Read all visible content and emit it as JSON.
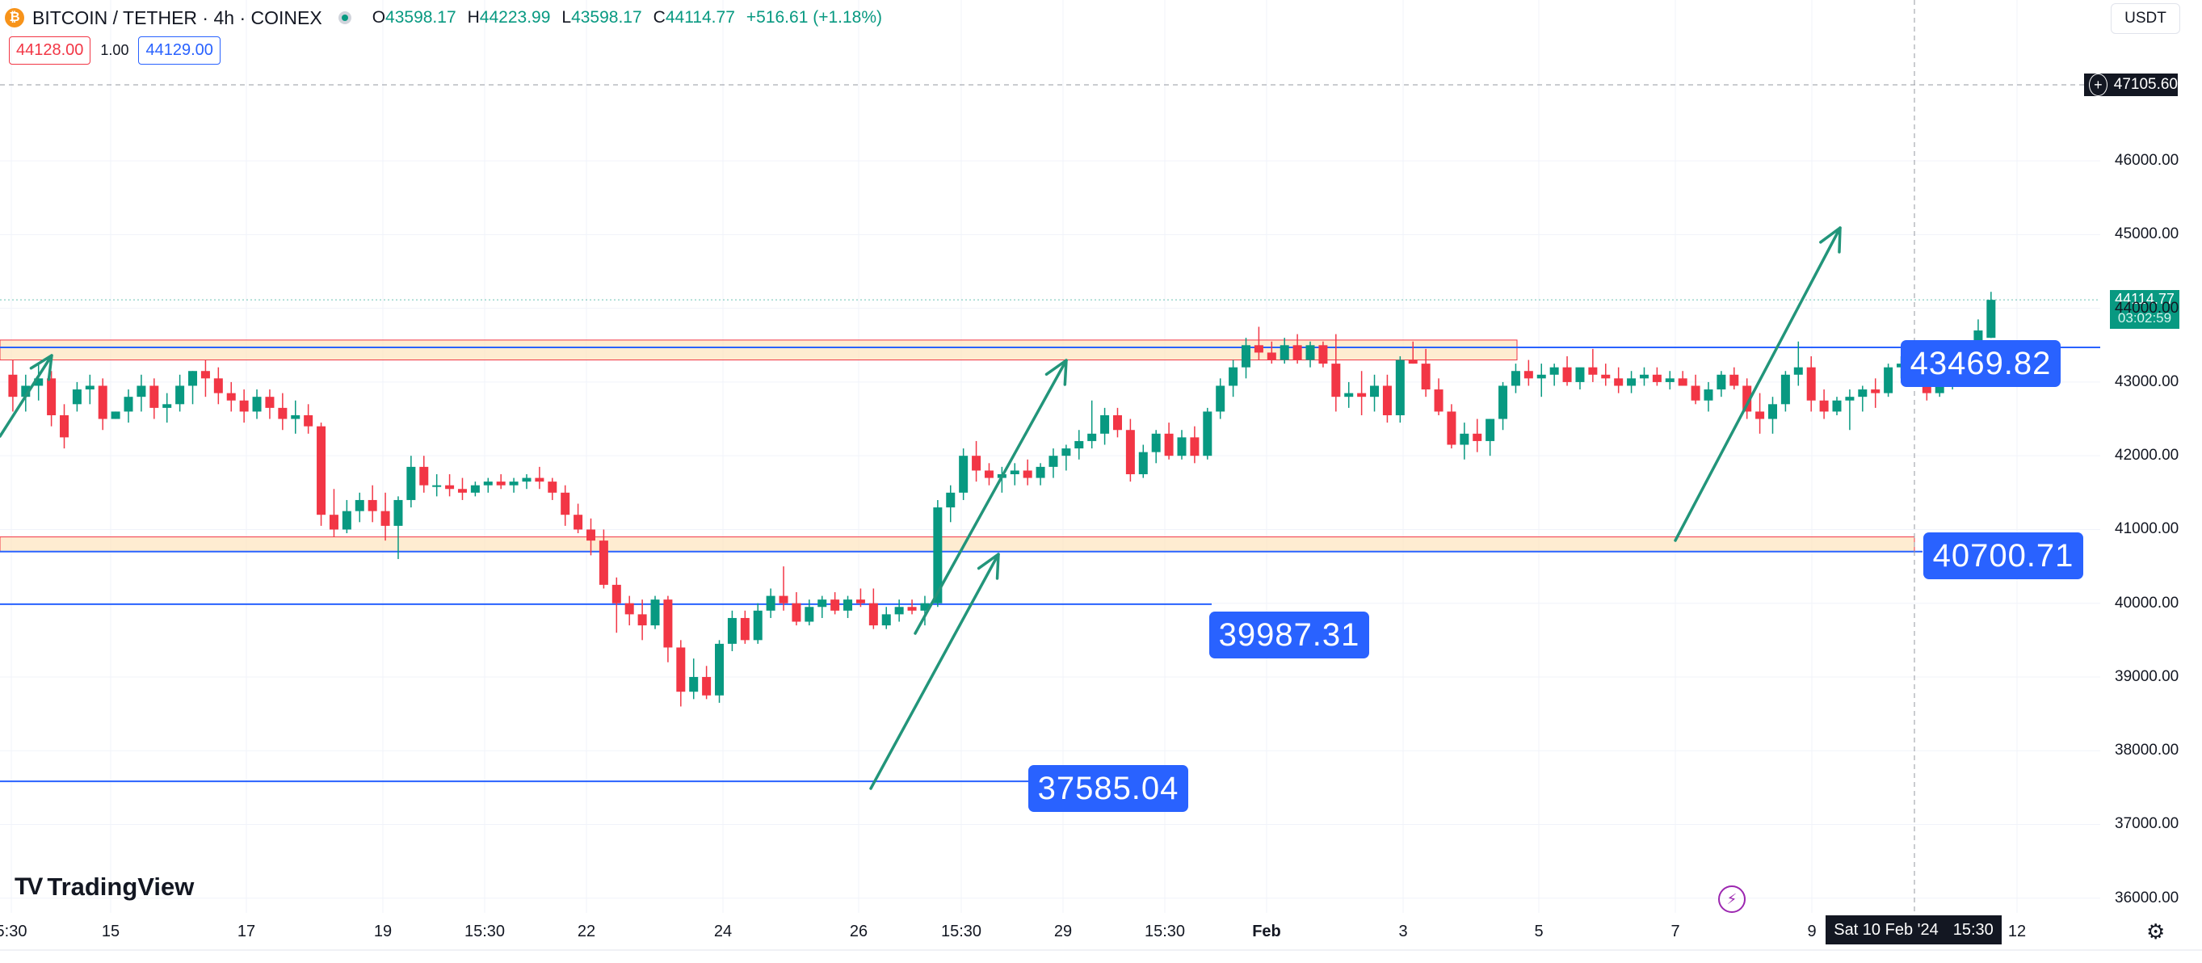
{
  "header": {
    "symbol_title": "BITCOIN / TETHER · 4h · COINEX",
    "coin_icon": "bitcoin-icon",
    "ohlc": [
      {
        "key": "O",
        "value": "43598.17"
      },
      {
        "key": "H",
        "value": "44223.99"
      },
      {
        "key": "L",
        "value": "43598.17"
      },
      {
        "key": "C",
        "value": "44114.77"
      }
    ],
    "change": "+516.61 (+1.18%)"
  },
  "bidask": {
    "bid": "44128.00",
    "spread": "1.00",
    "ask": "44129.00"
  },
  "currency_button": "USDT",
  "crosshair": {
    "price": "47105.60",
    "time_date": "Sat 10 Feb '24",
    "time_clock": "15:30"
  },
  "current_price": {
    "price": "44114.77",
    "countdown": "03:02:59"
  },
  "levels": [
    {
      "value": "43469.82"
    },
    {
      "value": "40700.71"
    },
    {
      "value": "39987.31"
    },
    {
      "value": "37585.04"
    }
  ],
  "logo_text": "TradingView",
  "colors": {
    "up": "#089981",
    "down": "#f23645",
    "level": "#2962ff",
    "zone_fill": "#fde5c2",
    "zone_border": "#f23645"
  },
  "chart_data": {
    "type": "candlestick",
    "symbol": "BITCOIN / TETHER",
    "interval": "4h",
    "exchange": "COINEX",
    "y_ticks": [
      36000,
      37000,
      38000,
      39000,
      40000,
      41000,
      42000,
      43000,
      44000,
      45000,
      46000
    ],
    "y_tick_labels": [
      "36000.00",
      "37000.00",
      "38000.00",
      "39000.00",
      "40000.00",
      "41000.00",
      "42000.00",
      "43000.00",
      "44000.00",
      "45000.00",
      "46000.00"
    ],
    "x_tick_labels": [
      "5:30",
      "15",
      "17",
      "19",
      "15:30",
      "22",
      "24",
      "26",
      "15:30",
      "29",
      "15:30",
      "Feb",
      "3",
      "5",
      "7",
      "9",
      "12"
    ],
    "candles": [
      [
        43100,
        43300,
        42600,
        42800
      ],
      [
        42800,
        43100,
        42600,
        42950
      ],
      [
        42950,
        43250,
        42750,
        43050
      ],
      [
        43050,
        43150,
        42400,
        42550
      ],
      [
        42550,
        42700,
        42100,
        42250
      ],
      [
        42700,
        43000,
        42600,
        42900
      ],
      [
        42900,
        43100,
        42700,
        42950
      ],
      [
        42950,
        43050,
        42350,
        42500
      ],
      [
        42500,
        42600,
        42500,
        42600
      ],
      [
        42600,
        42900,
        42450,
        42800
      ],
      [
        42800,
        43100,
        42600,
        42950
      ],
      [
        42950,
        43050,
        42500,
        42650
      ],
      [
        42650,
        42850,
        42450,
        42700
      ],
      [
        42700,
        43100,
        42600,
        42950
      ],
      [
        42950,
        43150,
        42700,
        43150
      ],
      [
        43150,
        43300,
        42800,
        43050
      ],
      [
        43050,
        43200,
        42700,
        42850
      ],
      [
        42850,
        43000,
        42600,
        42750
      ],
      [
        42750,
        42900,
        42450,
        42600
      ],
      [
        42600,
        42900,
        42500,
        42800
      ],
      [
        42800,
        42900,
        42500,
        42650
      ],
      [
        42650,
        42850,
        42350,
        42500
      ],
      [
        42500,
        42750,
        42300,
        42550
      ],
      [
        42550,
        42700,
        42300,
        42400
      ],
      [
        42400,
        42450,
        41050,
        41200
      ],
      [
        41200,
        41550,
        40900,
        41000
      ],
      [
        41000,
        41400,
        40950,
        41250
      ],
      [
        41250,
        41500,
        41100,
        41400
      ],
      [
        41400,
        41600,
        41100,
        41250
      ],
      [
        41250,
        41500,
        40850,
        41050
      ],
      [
        41050,
        41450,
        40600,
        41400
      ],
      [
        41400,
        42000,
        41300,
        41850
      ],
      [
        41850,
        42000,
        41500,
        41600
      ],
      [
        41600,
        41750,
        41450,
        41600
      ],
      [
        41600,
        41750,
        41450,
        41550
      ],
      [
        41550,
        41700,
        41400,
        41500
      ],
      [
        41500,
        41650,
        41450,
        41600
      ],
      [
        41600,
        41700,
        41500,
        41650
      ],
      [
        41650,
        41750,
        41550,
        41600
      ],
      [
        41600,
        41700,
        41500,
        41650
      ],
      [
        41650,
        41750,
        41550,
        41700
      ],
      [
        41700,
        41850,
        41550,
        41650
      ],
      [
        41650,
        41700,
        41400,
        41500
      ],
      [
        41500,
        41600,
        41050,
        41200
      ],
      [
        41200,
        41350,
        40950,
        41000
      ],
      [
        41000,
        41150,
        40650,
        40850
      ],
      [
        40850,
        41000,
        40200,
        40250
      ],
      [
        40250,
        40350,
        39600,
        40000
      ],
      [
        40000,
        40100,
        39700,
        39850
      ],
      [
        39850,
        40050,
        39500,
        39700
      ],
      [
        39700,
        40100,
        39650,
        40050
      ],
      [
        40050,
        40100,
        39200,
        39400
      ],
      [
        39400,
        39500,
        38600,
        38800
      ],
      [
        38800,
        39250,
        38700,
        39000
      ],
      [
        39000,
        39150,
        38700,
        38750
      ],
      [
        38750,
        39500,
        38650,
        39450
      ],
      [
        39450,
        39900,
        39350,
        39800
      ],
      [
        39800,
        39900,
        39450,
        39500
      ],
      [
        39500,
        40000,
        39450,
        39900
      ],
      [
        39900,
        40200,
        39800,
        40100
      ],
      [
        40100,
        40500,
        39900,
        40000
      ],
      [
        40000,
        40150,
        39700,
        39750
      ],
      [
        39750,
        40050,
        39700,
        39950
      ],
      [
        39950,
        40100,
        39800,
        40050
      ],
      [
        40050,
        40150,
        39850,
        39900
      ],
      [
        39900,
        40100,
        39800,
        40050
      ],
      [
        40050,
        40200,
        39950,
        40000
      ],
      [
        40000,
        40200,
        39650,
        39700
      ],
      [
        39700,
        39950,
        39650,
        39850
      ],
      [
        39850,
        40050,
        39750,
        39950
      ],
      [
        39950,
        40050,
        39850,
        39900
      ],
      [
        39900,
        40100,
        39700,
        40000
      ],
      [
        40000,
        41400,
        39950,
        41300
      ],
      [
        41300,
        41600,
        41100,
        41500
      ],
      [
        41500,
        42100,
        41400,
        42000
      ],
      [
        42000,
        42200,
        41650,
        41800
      ],
      [
        41800,
        41900,
        41600,
        41700
      ],
      [
        41700,
        41850,
        41500,
        41750
      ],
      [
        41750,
        41900,
        41600,
        41800
      ],
      [
        41800,
        41950,
        41600,
        41700
      ],
      [
        41700,
        41900,
        41600,
        41850
      ],
      [
        41850,
        42100,
        41700,
        42000
      ],
      [
        42000,
        42150,
        41800,
        42100
      ],
      [
        42100,
        42350,
        41950,
        42200
      ],
      [
        42200,
        42750,
        42100,
        42300
      ],
      [
        42300,
        42650,
        42150,
        42550
      ],
      [
        42550,
        42650,
        42250,
        42350
      ],
      [
        42350,
        42500,
        41650,
        41750
      ],
      [
        41750,
        42150,
        41700,
        42050
      ],
      [
        42050,
        42350,
        41900,
        42300
      ],
      [
        42300,
        42450,
        41950,
        42000
      ],
      [
        42000,
        42350,
        41950,
        42250
      ],
      [
        42250,
        42400,
        41900,
        42000
      ],
      [
        42000,
        42650,
        41950,
        42600
      ],
      [
        42600,
        43050,
        42500,
        42950
      ],
      [
        42950,
        43300,
        42800,
        43200
      ],
      [
        43200,
        43600,
        43050,
        43500
      ],
      [
        43500,
        43750,
        43300,
        43400
      ],
      [
        43400,
        43550,
        43250,
        43300
      ],
      [
        43300,
        43600,
        43250,
        43500
      ],
      [
        43500,
        43650,
        43250,
        43300
      ],
      [
        43300,
        43550,
        43200,
        43500
      ],
      [
        43500,
        43550,
        43200,
        43250
      ],
      [
        43250,
        43650,
        42600,
        42800
      ],
      [
        42800,
        43000,
        42650,
        42850
      ],
      [
        42850,
        43150,
        42550,
        42800
      ],
      [
        42800,
        43100,
        42600,
        42950
      ],
      [
        42950,
        43100,
        42450,
        42550
      ],
      [
        42550,
        43350,
        42450,
        43300
      ],
      [
        43300,
        43550,
        43250,
        43250
      ],
      [
        43250,
        43450,
        42800,
        42900
      ],
      [
        42900,
        43050,
        42550,
        42600
      ],
      [
        42600,
        42700,
        42100,
        42150
      ],
      [
        42150,
        42450,
        41950,
        42300
      ],
      [
        42300,
        42500,
        42050,
        42200
      ],
      [
        42200,
        42500,
        42000,
        42500
      ],
      [
        42500,
        43000,
        42350,
        42950
      ],
      [
        42950,
        43250,
        42850,
        43150
      ],
      [
        43150,
        43300,
        42950,
        43050
      ],
      [
        43050,
        43250,
        42800,
        43100
      ],
      [
        43100,
        43250,
        42950,
        43200
      ],
      [
        43200,
        43350,
        42950,
        43000
      ],
      [
        43000,
        43150,
        42900,
        43200
      ],
      [
        43200,
        43450,
        43000,
        43100
      ],
      [
        43100,
        43250,
        42950,
        43050
      ],
      [
        43050,
        43200,
        42850,
        42950
      ],
      [
        42950,
        43150,
        42850,
        43050
      ],
      [
        43050,
        43200,
        42950,
        43100
      ],
      [
        43100,
        43200,
        42950,
        43000
      ],
      [
        43000,
        43150,
        42900,
        43050
      ],
      [
        43050,
        43150,
        42950,
        42950
      ],
      [
        42950,
        43100,
        42700,
        42750
      ],
      [
        42750,
        43000,
        42600,
        42900
      ],
      [
        42900,
        43150,
        42800,
        43100
      ],
      [
        43100,
        43200,
        42900,
        42950
      ],
      [
        42950,
        43050,
        42500,
        42600
      ],
      [
        42600,
        42850,
        42300,
        42500
      ],
      [
        42500,
        42800,
        42300,
        42700
      ],
      [
        42700,
        43150,
        42600,
        43100
      ],
      [
        43100,
        43550,
        42950,
        43200
      ],
      [
        43200,
        43350,
        42600,
        42750
      ],
      [
        42750,
        42900,
        42500,
        42600
      ],
      [
        42600,
        42800,
        42550,
        42750
      ],
      [
        42750,
        42900,
        42350,
        42800
      ],
      [
        42800,
        42950,
        42600,
        42900
      ],
      [
        42900,
        43050,
        42650,
        42850
      ],
      [
        42850,
        43250,
        42800,
        43200
      ],
      [
        43200,
        43350,
        43050,
        43250
      ],
      [
        43250,
        43350,
        43050,
        43100
      ],
      [
        43100,
        43150,
        42750,
        42850
      ],
      [
        42850,
        43000,
        42800,
        42950
      ],
      [
        42950,
        43150,
        42900,
        43050
      ],
      [
        43050,
        43350,
        42950,
        43300
      ],
      [
        43300,
        43850,
        43250,
        43700
      ],
      [
        43600,
        44224,
        43598,
        44115
      ]
    ],
    "levels": [
      43469.82,
      40700.71,
      39987.31,
      37585.04
    ],
    "zones": [
      [
        43300,
        43570
      ],
      [
        40700,
        40900
      ]
    ],
    "x_min": -1,
    "x_max": 162.5,
    "ylim": [
      35800,
      47700
    ]
  }
}
